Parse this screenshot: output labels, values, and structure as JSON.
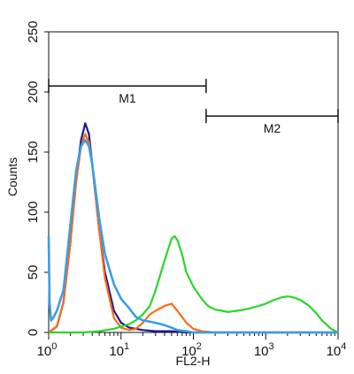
{
  "chart_data": {
    "type": "line",
    "title": "",
    "xlabel": "FL2-H",
    "ylabel": "Counts",
    "x_scale": "log",
    "xlim": [
      1,
      10000
    ],
    "ylim": [
      0,
      250
    ],
    "grid": false,
    "x_ticks": [
      {
        "base": "10",
        "exp": "0",
        "value": 1
      },
      {
        "base": "10",
        "exp": "1",
        "value": 10
      },
      {
        "base": "10",
        "exp": "2",
        "value": 100
      },
      {
        "base": "10",
        "exp": "3",
        "value": 1000
      },
      {
        "base": "10",
        "exp": "4",
        "value": 10000
      }
    ],
    "y_ticks": [
      "0",
      "50",
      "100",
      "150",
      "200",
      "250"
    ],
    "markers": [
      {
        "label": "M1",
        "x_start": 1,
        "x_end": 150,
        "y": 205
      },
      {
        "label": "M2",
        "x_start": 150,
        "x_end": 10000,
        "y": 180
      }
    ],
    "series": [
      {
        "color": "#1a1a8c",
        "x": [
          1,
          1.3,
          1.6,
          2,
          2.4,
          2.8,
          3.2,
          3.6,
          4,
          5,
          6,
          8,
          10,
          13,
          20,
          30,
          50,
          80,
          100,
          1000,
          10000
        ],
        "y": [
          0,
          5,
          25,
          75,
          130,
          160,
          174,
          165,
          140,
          85,
          50,
          18,
          8,
          4,
          2,
          1,
          1,
          0,
          0,
          0,
          0
        ]
      },
      {
        "color": "#ff6a13",
        "x": [
          1,
          1.3,
          1.6,
          2,
          2.4,
          2.8,
          3.2,
          3.6,
          4,
          5,
          6,
          8,
          10,
          13,
          16,
          20,
          25,
          30,
          40,
          50,
          60,
          80,
          100,
          130,
          200,
          1000,
          10000
        ],
        "y": [
          0,
          5,
          25,
          75,
          125,
          155,
          165,
          158,
          140,
          85,
          45,
          12,
          4,
          2,
          3,
          8,
          15,
          18,
          22,
          24,
          18,
          8,
          3,
          1,
          0,
          0,
          0
        ]
      },
      {
        "color": "#2ad62a",
        "x": [
          1,
          3,
          5,
          8,
          10,
          13,
          16,
          20,
          25,
          30,
          40,
          50,
          55,
          60,
          70,
          80,
          100,
          130,
          160,
          200,
          250,
          300,
          400,
          500,
          600,
          800,
          1000,
          1300,
          1600,
          2000,
          2500,
          3000,
          4000,
          5000,
          6000,
          8000,
          10000
        ],
        "y": [
          0,
          0,
          1,
          3,
          5,
          7,
          10,
          15,
          22,
          35,
          60,
          78,
          80,
          77,
          65,
          50,
          38,
          28,
          22,
          19,
          18,
          17,
          18,
          19,
          20,
          22,
          24,
          27,
          29,
          30,
          29,
          27,
          22,
          16,
          10,
          3,
          0
        ]
      },
      {
        "color": "#3a9ee6",
        "x": [
          1,
          1.03,
          1.08,
          1.15,
          1.3,
          1.6,
          2,
          2.4,
          2.8,
          3.2,
          3.6,
          4,
          5,
          6,
          8,
          10,
          13,
          16,
          20,
          25,
          30,
          40,
          50,
          60,
          80,
          100,
          150,
          1000,
          10000
        ],
        "y": [
          80,
          25,
          10,
          12,
          18,
          35,
          90,
          135,
          155,
          160,
          155,
          140,
          95,
          65,
          40,
          28,
          20,
          13,
          10,
          9,
          8,
          6,
          4,
          2,
          1,
          0,
          0,
          0,
          0
        ]
      }
    ]
  }
}
